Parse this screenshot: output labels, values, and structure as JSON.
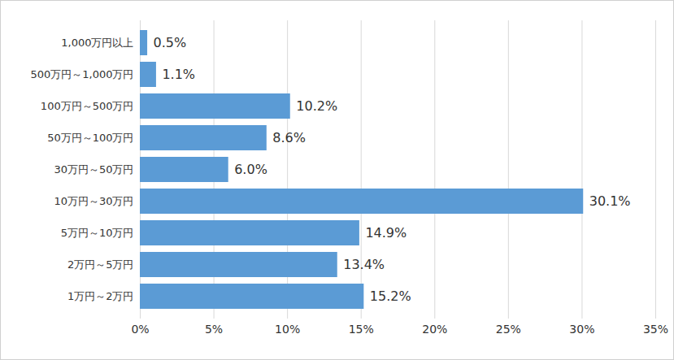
{
  "chart_data": {
    "type": "bar",
    "orientation": "horizontal",
    "categories": [
      "1,000万円以上",
      "500万円～1,000万円",
      "100万円～500万円",
      "50万円～100万円",
      "30万円～50万円",
      "10万円～30万円",
      "5万円～10万円",
      "2万円～5万円",
      "1万円～2万円"
    ],
    "values": [
      0.5,
      1.1,
      10.2,
      8.6,
      6.0,
      30.1,
      14.9,
      13.4,
      15.2
    ],
    "value_labels": [
      "0.5%",
      "1.1%",
      "10.2%",
      "8.6%",
      "6.0%",
      "30.1%",
      "14.9%",
      "13.4%",
      "15.2%"
    ],
    "color": "#5b9bd5",
    "xlim": [
      0,
      35
    ],
    "xticks": [
      {
        "value": 0,
        "label": "0%"
      },
      {
        "value": 5,
        "label": "5%"
      },
      {
        "value": 10,
        "label": "10%"
      },
      {
        "value": 15,
        "label": "15%"
      },
      {
        "value": 20,
        "label": "20%"
      },
      {
        "value": 25,
        "label": "25%"
      },
      {
        "value": 30,
        "label": "30%"
      },
      {
        "value": 35,
        "label": "35%"
      }
    ],
    "grid": true,
    "data_labels": true
  }
}
